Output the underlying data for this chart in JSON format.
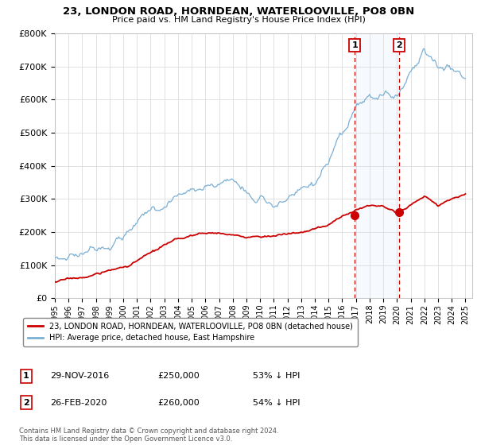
{
  "title": "23, LONDON ROAD, HORNDEAN, WATERLOOVILLE, PO8 0BN",
  "subtitle": "Price paid vs. HM Land Registry's House Price Index (HPI)",
  "legend_label_red": "23, LONDON ROAD, HORNDEAN, WATERLOOVILLE, PO8 0BN (detached house)",
  "legend_label_blue": "HPI: Average price, detached house, East Hampshire",
  "footer": "Contains HM Land Registry data © Crown copyright and database right 2024.\nThis data is licensed under the Open Government Licence v3.0.",
  "annotation1": {
    "label": "1",
    "date": "29-NOV-2016",
    "price": "£250,000",
    "pct": "53% ↓ HPI",
    "x_year": 2016.91
  },
  "annotation2": {
    "label": "2",
    "date": "26-FEB-2020",
    "price": "£260,000",
    "pct": "54% ↓ HPI",
    "x_year": 2020.15
  },
  "red_dot1_y": 250000,
  "red_dot2_y": 260000,
  "ylim": [
    0,
    800000
  ],
  "yticks": [
    0,
    100000,
    200000,
    300000,
    400000,
    500000,
    600000,
    700000,
    800000
  ],
  "xlim": [
    1995,
    2025.5
  ],
  "background_color": "#ffffff",
  "red_color": "#cc0000",
  "blue_color": "#7bafd4",
  "grid_color": "#dddddd",
  "shade_color": "#ddeeff"
}
